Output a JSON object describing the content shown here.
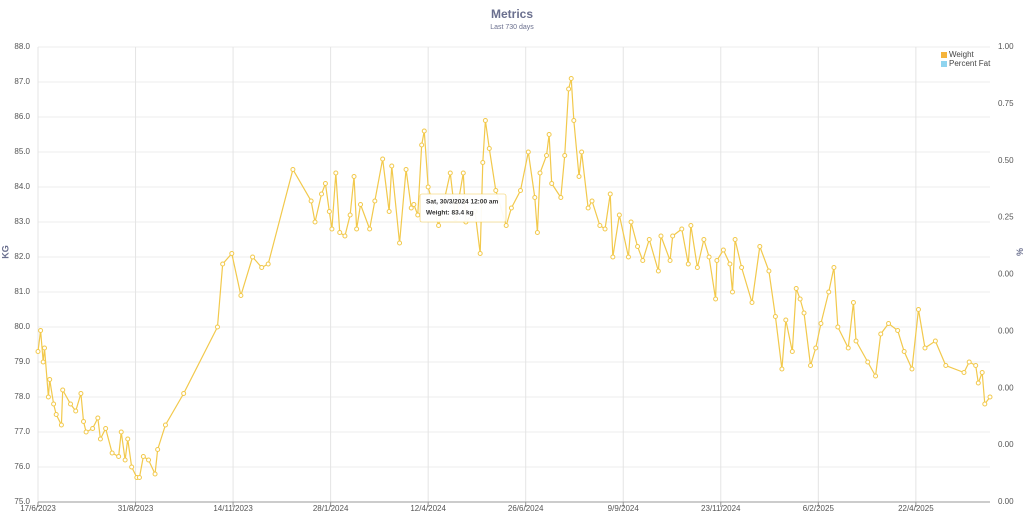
{
  "chart_data": {
    "type": "line",
    "title": "Metrics",
    "subtitle": "Last 730 days",
    "y_label": "KG",
    "y2_label": "%",
    "xlim": [
      "17/6/2023",
      "18/6/2025"
    ],
    "xticks": [
      "17/6/2023",
      "31/8/2023",
      "14/11/2023",
      "28/1/2024",
      "12/4/2024",
      "26/6/2024",
      "9/9/2024",
      "23/11/2024",
      "6/2/2025",
      "22/4/2025"
    ],
    "ylim": [
      75,
      88
    ],
    "yticks": [
      {
        "value": 75,
        "label": "75.0"
      },
      {
        "value": 76,
        "label": "76.0"
      },
      {
        "value": 77,
        "label": "77.0"
      },
      {
        "value": 78,
        "label": "78.0"
      },
      {
        "value": 79,
        "label": "79.0"
      },
      {
        "value": 80,
        "label": "80.0"
      },
      {
        "value": 81,
        "label": "81.0"
      },
      {
        "value": 82,
        "label": "82.0"
      },
      {
        "value": 83,
        "label": "83.0"
      },
      {
        "value": 84,
        "label": "84.0"
      },
      {
        "value": 85,
        "label": "85.0"
      },
      {
        "value": 86,
        "label": "86.0"
      },
      {
        "value": 87,
        "label": "87.0"
      },
      {
        "value": 88,
        "label": "88.0"
      }
    ],
    "y2_tick_labels": [
      "1.00",
      "0.75",
      "0.50",
      "0.25",
      "0.00",
      "0.00",
      "0.00",
      "0.00",
      "0.00"
    ],
    "legend": [
      {
        "name": "Weight",
        "color": "#f5b43c"
      },
      {
        "name": "Percent Fat",
        "color": "#8fd4ef"
      }
    ],
    "legend_position": "upper right",
    "tooltip": {
      "title": "Sat, 30/3/2024 12:00 am",
      "text": "Weight: 83.4 kg"
    },
    "x": [
      "17/6/2023",
      "19/6/2023",
      "21/6/2023",
      "22/6/2023",
      "25/6/2023",
      "26/6/2023",
      "29/6/2023",
      "1/7/2023",
      "5/7/2023",
      "6/7/2023",
      "12/7/2023",
      "16/7/2023",
      "20/7/2023",
      "22/7/2023",
      "24/7/2023",
      "29/7/2023",
      "2/8/2023",
      "4/8/2023",
      "8/8/2023",
      "13/8/2023",
      "18/8/2023",
      "20/8/2023",
      "23/8/2023",
      "25/8/2023",
      "28/8/2023",
      "1/9/2023",
      "3/9/2023",
      "6/9/2023",
      "10/9/2023",
      "15/9/2023",
      "17/9/2023",
      "23/9/2023",
      "7/10/2023",
      "2/11/2023",
      "6/11/2023",
      "13/11/2023",
      "20/11/2023",
      "29/11/2023",
      "6/12/2023",
      "11/12/2023",
      "30/12/2023",
      "13/1/2024",
      "16/1/2024",
      "21/1/2024",
      "24/1/2024",
      "27/1/2024",
      "29/1/2024",
      "1/2/2024",
      "4/2/2024",
      "8/2/2024",
      "12/2/2024",
      "15/2/2024",
      "17/2/2024",
      "20/2/2024",
      "27/2/2024",
      "2/3/2024",
      "8/3/2024",
      "13/3/2024",
      "15/3/2024",
      "21/3/2024",
      "26/3/2024",
      "30/3/2024",
      "1/4/2024",
      "4/4/2024",
      "7/4/2024",
      "9/4/2024",
      "12/4/2024",
      "20/4/2024",
      "29/4/2024",
      "3/5/2024",
      "9/5/2024",
      "11/5/2024",
      "18/5/2024",
      "22/5/2024",
      "24/5/2024",
      "26/5/2024",
      "29/5/2024",
      "3/6/2024",
      "11/6/2024",
      "15/6/2024",
      "22/6/2024",
      "28/6/2024",
      "3/7/2024",
      "5/7/2024",
      "7/7/2024",
      "12/7/2024",
      "14/7/2024",
      "16/7/2024",
      "23/7/2024",
      "26/7/2024",
      "29/7/2024",
      "31/7/2024",
      "2/8/2024",
      "6/8/2024",
      "8/8/2024",
      "13/8/2024",
      "16/8/2024",
      "22/8/2024",
      "26/8/2024",
      "30/8/2024",
      "1/9/2024",
      "6/9/2024",
      "13/9/2024",
      "15/9/2024",
      "20/9/2024",
      "24/9/2024",
      "29/9/2024",
      "6/10/2024",
      "8/10/2024",
      "15/10/2024",
      "17/10/2024",
      "24/10/2024",
      "29/10/2024",
      "31/10/2024",
      "5/11/2024",
      "10/11/2024",
      "14/11/2024",
      "19/11/2024",
      "20/11/2024",
      "25/11/2024",
      "30/11/2024",
      "2/12/2024",
      "4/12/2024",
      "9/12/2024",
      "17/12/2024",
      "23/12/2024",
      "30/12/2024",
      "4/1/2025",
      "9/1/2025",
      "12/1/2025",
      "17/1/2025",
      "20/1/2025",
      "23/1/2025",
      "26/1/2025",
      "31/1/2025",
      "4/2/2025",
      "8/2/2025",
      "14/2/2025",
      "18/2/2025",
      "21/2/2025",
      "1/3/2025",
      "5/3/2025",
      "7/3/2025",
      "16/3/2025",
      "22/3/2025",
      "26/3/2025",
      "1/4/2025",
      "8/4/2025",
      "13/4/2025",
      "19/4/2025",
      "24/4/2025",
      "29/4/2025",
      "7/5/2025",
      "15/5/2025",
      "29/5/2025",
      "2/6/2025",
      "7/6/2025",
      "9/6/2025",
      "12/6/2025",
      "14/6/2025",
      "18/6/2025"
    ],
    "series": [
      {
        "name": "Weight",
        "color": "#f2c94c",
        "values": [
          79.3,
          79.9,
          79.0,
          79.4,
          78.0,
          78.5,
          77.8,
          77.5,
          77.2,
          78.2,
          77.8,
          77.6,
          78.1,
          77.3,
          77.0,
          77.1,
          77.4,
          76.8,
          77.1,
          76.4,
          76.3,
          77.0,
          76.2,
          76.8,
          76.0,
          75.7,
          75.7,
          76.3,
          76.2,
          75.8,
          76.5,
          77.2,
          78.1,
          80.0,
          81.8,
          82.1,
          80.9,
          82.0,
          81.7,
          81.8,
          84.5,
          83.6,
          83.0,
          83.8,
          84.1,
          83.3,
          82.8,
          84.4,
          82.7,
          82.6,
          83.2,
          84.3,
          82.8,
          83.5,
          82.8,
          83.6,
          84.8,
          83.3,
          84.6,
          82.4,
          84.5,
          83.4,
          83.5,
          83.2,
          85.2,
          85.6,
          84.0,
          82.9,
          84.4,
          83.1,
          84.4,
          83.0,
          83.3,
          82.1,
          84.7,
          85.9,
          85.1,
          83.9,
          82.9,
          83.4,
          83.9,
          85.0,
          83.7,
          82.7,
          84.4,
          84.9,
          85.5,
          84.1,
          83.7,
          84.9,
          86.8,
          87.1,
          85.9,
          84.3,
          85.0,
          83.4,
          83.6,
          82.9,
          82.8,
          83.8,
          82.0,
          83.2,
          82.0,
          83.0,
          82.3,
          81.9,
          82.5,
          81.6,
          82.6,
          81.9,
          82.6,
          82.8,
          81.8,
          82.9,
          81.7,
          82.5,
          82.0,
          80.8,
          81.9,
          82.2,
          81.8,
          81.0,
          82.5,
          81.7,
          80.7,
          82.3,
          81.6,
          80.3,
          78.8,
          80.2,
          79.3,
          81.1,
          80.8,
          80.4,
          78.9,
          79.4,
          80.1,
          81.0,
          81.7,
          80.0,
          79.4,
          80.7,
          79.6,
          79.0,
          78.6,
          79.8,
          80.1,
          79.9,
          79.3,
          78.8,
          80.5,
          79.4,
          79.6,
          78.9,
          78.7,
          79.0,
          78.9,
          78.4,
          78.7,
          77.8,
          78.0
        ]
      }
    ]
  }
}
